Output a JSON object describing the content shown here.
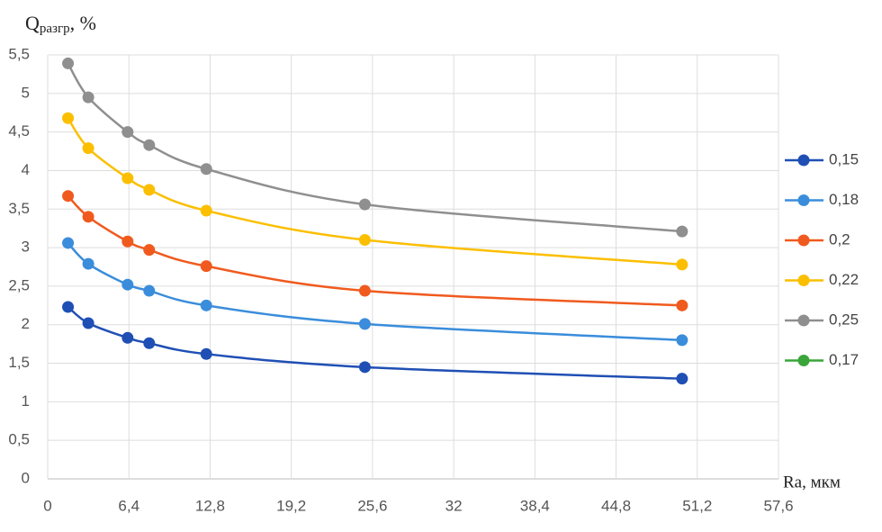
{
  "chart_data": {
    "type": "line",
    "y_label": [
      "Q",
      "разгр",
      ", %"
    ],
    "x_label": "Ra, мкм",
    "x": [
      1.6,
      3.2,
      6.3,
      8,
      12.5,
      25,
      50
    ],
    "series": [
      {
        "name": "0,15",
        "color": "#1f4fb4",
        "values": [
          2.23,
          2.02,
          1.83,
          1.76,
          1.62,
          1.45,
          1.3
        ]
      },
      {
        "name": "0,18",
        "color": "#3a8ddb",
        "values": [
          3.06,
          2.79,
          2.52,
          2.44,
          2.25,
          2.01,
          1.8
        ]
      },
      {
        "name": "0,2",
        "color": "#f05a1e",
        "values": [
          3.67,
          3.4,
          3.08,
          2.97,
          2.76,
          2.44,
          2.25
        ]
      },
      {
        "name": "0,22",
        "color": "#fbbf00",
        "values": [
          4.68,
          4.29,
          3.9,
          3.75,
          3.48,
          3.1,
          2.78
        ]
      },
      {
        "name": "0,25",
        "color": "#8f8f8f",
        "values": [
          5.39,
          4.95,
          4.5,
          4.33,
          4.02,
          3.56,
          3.21
        ]
      },
      {
        "name": "0,17",
        "color": "#3aa63a",
        "values": [
          null,
          null,
          null,
          null,
          null,
          null,
          null
        ]
      }
    ],
    "xlim": [
      0,
      57.6
    ],
    "xticks": [
      0,
      {
        "value": 6.4,
        "label": "6,4"
      },
      {
        "value": 12.8,
        "label": "12,8"
      },
      {
        "value": 19.2,
        "label": "19,2"
      },
      {
        "value": 25.6,
        "label": "25,6"
      },
      32,
      {
        "value": 38.4,
        "label": "38,4"
      },
      {
        "value": 44.8,
        "label": "44,8"
      },
      {
        "value": 51.2,
        "label": "51,2"
      },
      {
        "value": 57.6,
        "label": "57,6"
      }
    ],
    "ylim": [
      0,
      5.5
    ],
    "yticks": [
      0,
      {
        "value": 0.5,
        "label": "0,5"
      },
      1,
      {
        "value": 1.5,
        "label": "1,5"
      },
      2,
      {
        "value": 2.5,
        "label": "2,5"
      },
      3,
      {
        "value": 3.5,
        "label": "3,5"
      },
      4,
      {
        "value": 4.5,
        "label": "4,5"
      },
      5,
      {
        "value": 5.5,
        "label": "5,5"
      }
    ],
    "grid": true,
    "legend": "right"
  }
}
